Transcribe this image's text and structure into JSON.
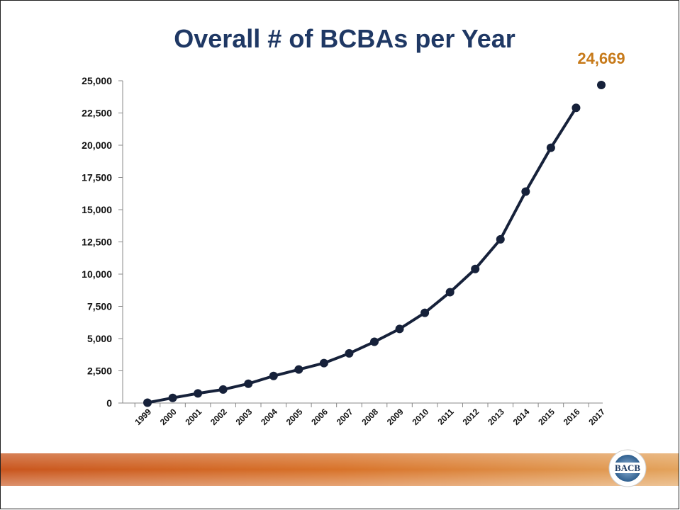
{
  "chart_data": {
    "type": "line",
    "title": "Overall # of BCBAs per Year",
    "categories": [
      "1999",
      "2000",
      "2001",
      "2002",
      "2003",
      "2004",
      "2005",
      "2006",
      "2007",
      "2008",
      "2009",
      "2010",
      "2011",
      "2012",
      "2013",
      "2014",
      "2015",
      "2016",
      "2017"
    ],
    "series": [
      {
        "color": "#16213a",
        "values": [
          30,
          400,
          750,
          1050,
          1500,
          2100,
          2600,
          3100,
          3850,
          4750,
          5750,
          7000,
          8600,
          10400,
          12700,
          16400,
          19800,
          22900,
          null
        ]
      },
      {
        "color": "#16213a",
        "values": [
          null,
          null,
          null,
          null,
          null,
          null,
          null,
          null,
          null,
          null,
          null,
          null,
          null,
          null,
          null,
          null,
          null,
          null,
          24669
        ],
        "value_labels": [
          null,
          null,
          null,
          null,
          null,
          null,
          null,
          null,
          null,
          null,
          null,
          null,
          null,
          null,
          null,
          null,
          null,
          null,
          "24,669"
        ],
        "label_color": "#c77a1a"
      }
    ],
    "ylim": [
      0,
      25000
    ],
    "yticks": [
      0,
      {
        "value": 2500,
        "label": "2,500"
      },
      {
        "value": 5000,
        "label": "5,000"
      },
      {
        "value": 7500,
        "label": "7,500"
      },
      {
        "value": 10000,
        "label": "10,000"
      },
      {
        "value": 12500,
        "label": "12,500"
      },
      {
        "value": 15000,
        "label": "15,000"
      },
      {
        "value": 17500,
        "label": "17,500"
      },
      {
        "value": 20000,
        "label": "20,000"
      },
      {
        "value": 22500,
        "label": "22,500"
      },
      {
        "value": 25000,
        "label": "25,000"
      }
    ],
    "grid": false
  },
  "logo": "BACB"
}
